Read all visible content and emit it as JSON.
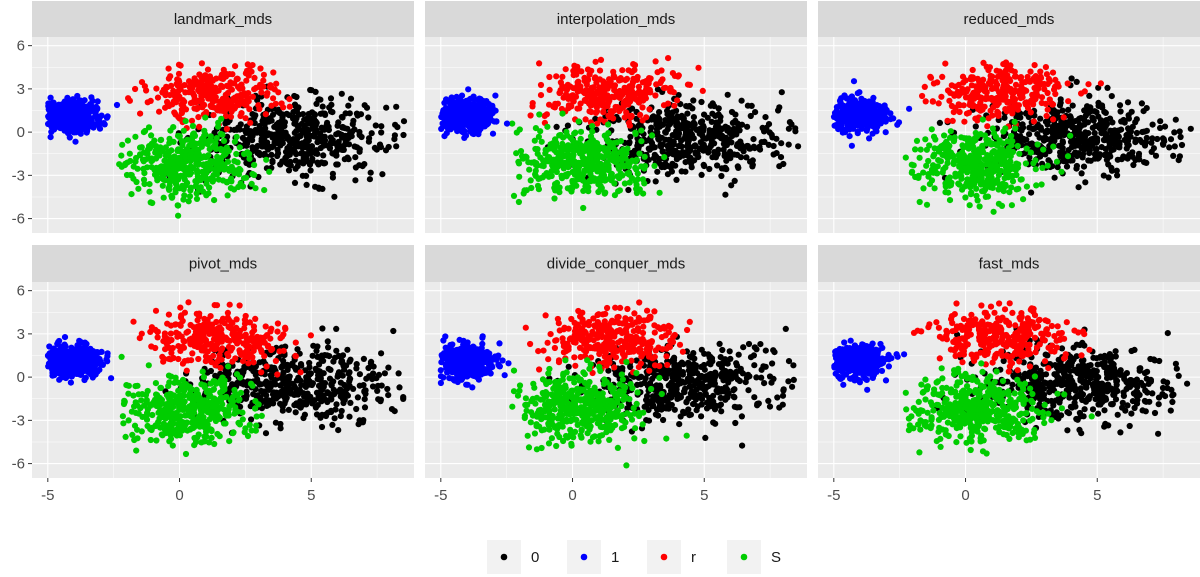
{
  "chart_data": {
    "type": "scatter",
    "layout": "facet-grid-2x3",
    "facets": [
      "landmark_mds",
      "interpolation_mds",
      "reduced_mds",
      "pivot_mds",
      "divide_conquer_mds",
      "fast_mds"
    ],
    "xlim": [
      -5.6,
      8.9
    ],
    "ylim": [
      -7,
      6.6
    ],
    "x_ticks": [
      -5,
      0,
      5
    ],
    "x_tick_labels": [
      "-5",
      "0",
      "5"
    ],
    "y_ticks": [
      -6,
      -3,
      0,
      3,
      6
    ],
    "y_tick_labels": [
      "-6",
      "-3",
      "0",
      "3",
      "6"
    ],
    "grid": true,
    "legend": {
      "position": "bottom",
      "entries": [
        "0",
        "1",
        "r",
        "S"
      ]
    },
    "series": [
      {
        "name": "0",
        "color": "#000000",
        "center": [
          4.3,
          -0.4
        ],
        "spread": [
          1.8,
          1.3
        ],
        "count": 500,
        "clip_x": [
          -1.5,
          8.6
        ],
        "clip_y": [
          -5.3,
          5.4
        ]
      },
      {
        "name": "1",
        "color": "#0000ff",
        "center": [
          -4.1,
          1.1
        ],
        "spread": [
          0.55,
          0.55
        ],
        "count": 420,
        "clip_x": [
          -5.0,
          -1.5
        ],
        "clip_y": [
          -3.0,
          3.9
        ]
      },
      {
        "name": "r",
        "color": "#ff0000",
        "center": [
          1.4,
          2.7
        ],
        "spread": [
          1.3,
          1.0
        ],
        "count": 300,
        "clip_x": [
          -2.2,
          5.3
        ],
        "clip_y": [
          0.0,
          5.3
        ]
      },
      {
        "name": "S",
        "color": "#00cd00",
        "center": [
          0.3,
          -2.2
        ],
        "spread": [
          1.2,
          1.2
        ],
        "count": 420,
        "clip_x": [
          -2.3,
          4.9
        ],
        "clip_y": [
          -6.2,
          2.0
        ]
      }
    ]
  }
}
